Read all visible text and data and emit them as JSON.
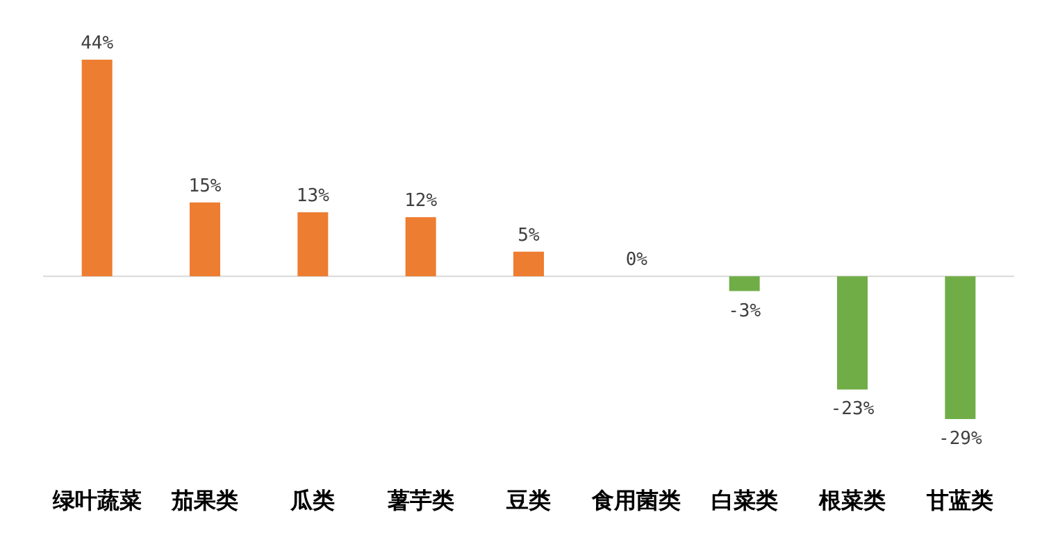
{
  "chart_data": {
    "type": "bar",
    "categories": [
      "绿叶蔬菜",
      "茄果类",
      "瓜类",
      "薯芋类",
      "豆类",
      "食用菌类",
      "白菜类",
      "根菜类",
      "甘蓝类"
    ],
    "values": [
      44,
      15,
      13,
      12,
      5,
      0,
      -3,
      -23,
      -29
    ],
    "value_labels": [
      "44%",
      "15%",
      "13%",
      "12%",
      "5%",
      "0%",
      "-3%",
      "-23%",
      "-29%"
    ],
    "colors": [
      "#ed7d31",
      "#ed7d31",
      "#ed7d31",
      "#ed7d31",
      "#ed7d31",
      "#ed7d31",
      "#70ad47",
      "#70ad47",
      "#70ad47"
    ]
  }
}
